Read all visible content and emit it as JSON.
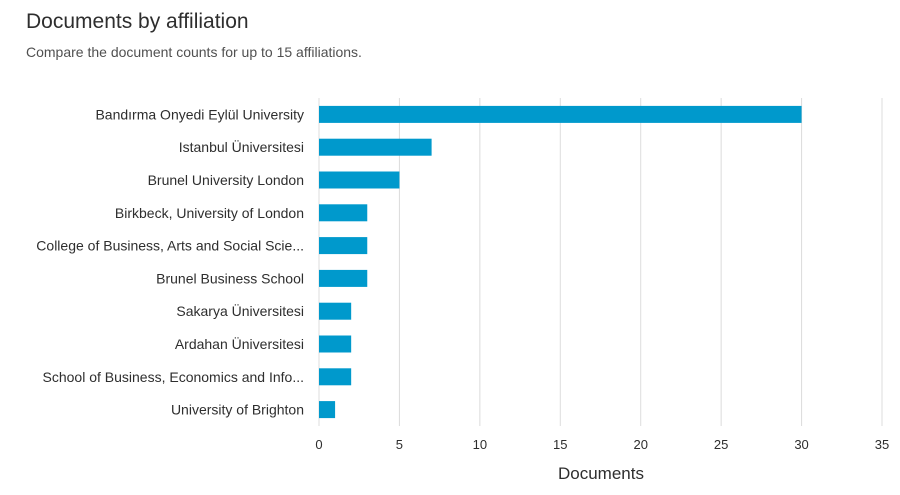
{
  "header": {
    "title": "Documents by affiliation",
    "subtitle": "Compare the document counts for up to 15 affiliations."
  },
  "chart_data": {
    "type": "bar",
    "orientation": "horizontal",
    "categories": [
      "Bandırma Onyedi Eylül University",
      "Istanbul Üniversitesi",
      "Brunel University London",
      "Birkbeck, University of London",
      "College of Business, Arts and Social Scie...",
      "Brunel Business School",
      "Sakarya Üniversitesi",
      "Ardahan Üniversitesi",
      "School of Business, Economics and Info...",
      "University of Brighton"
    ],
    "values": [
      30,
      7,
      5,
      3,
      3,
      3,
      2,
      2,
      2,
      1
    ],
    "xlabel": "Documents",
    "ylabel": "",
    "xlim": [
      0,
      35
    ],
    "xticks": [
      0,
      5,
      10,
      15,
      20,
      25,
      30,
      35
    ],
    "grid": "vertical",
    "bar_color": "#0099cc",
    "grid_color": "#dcdcdc"
  }
}
